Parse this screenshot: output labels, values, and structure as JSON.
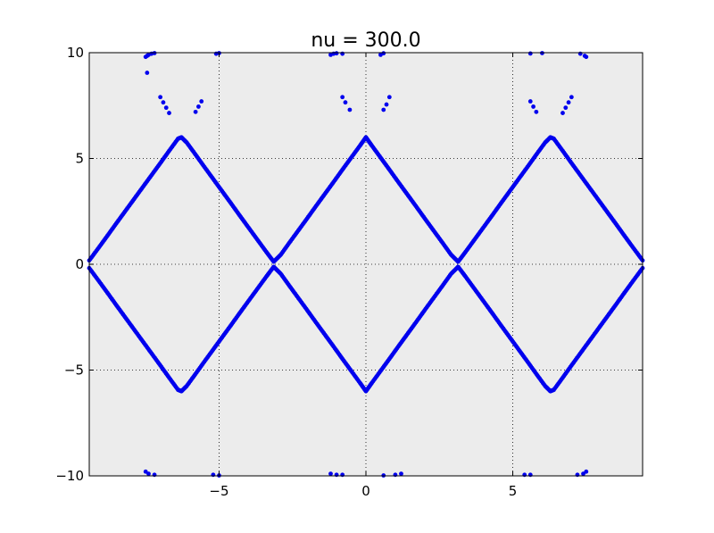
{
  "chart_data": {
    "type": "scatter",
    "title": "nu = 300.0",
    "xlabel": "",
    "ylabel": "",
    "xlim": [
      -9.42,
      9.42
    ],
    "ylim": [
      -10,
      10
    ],
    "x_ticks": [
      {
        "value": -5,
        "label": "−5"
      },
      {
        "value": 0,
        "label": "0"
      },
      {
        "value": 5,
        "label": "5"
      }
    ],
    "y_ticks": [
      {
        "value": -10,
        "label": "−10"
      },
      {
        "value": -5,
        "label": "−5"
      },
      {
        "value": 0,
        "label": "0"
      },
      {
        "value": 5,
        "label": "5"
      },
      {
        "value": 10,
        "label": "10"
      }
    ],
    "grid": true,
    "grid_style": "dotted",
    "background_color": "#ececec",
    "marker_color": "#0000ee",
    "series": [
      {
        "description_of_shape": "upper band: y = 6 - 6*|x - round(x/2pi)*2pi|/pi offset",
        "points": [
          [
            -9.42,
            0.18
          ],
          [
            -9.1,
            0.78
          ],
          [
            -8.8,
            1.35
          ],
          [
            -8.5,
            1.93
          ],
          [
            -8.2,
            2.5
          ],
          [
            -7.9,
            3.07
          ],
          [
            -7.6,
            3.64
          ],
          [
            -7.3,
            4.21
          ],
          [
            -7.0,
            4.78
          ],
          [
            -6.7,
            5.36
          ],
          [
            -6.4,
            5.93
          ],
          [
            -6.28,
            6.0
          ],
          [
            -6.1,
            5.75
          ],
          [
            -5.8,
            5.18
          ],
          [
            -5.5,
            4.6
          ],
          [
            -5.2,
            4.03
          ],
          [
            -4.9,
            3.46
          ],
          [
            -4.6,
            2.89
          ],
          [
            -4.3,
            2.31
          ],
          [
            -4.0,
            1.74
          ],
          [
            -3.7,
            1.17
          ],
          [
            -3.4,
            0.6
          ],
          [
            -3.14,
            0.12
          ],
          [
            -2.9,
            0.45
          ],
          [
            -2.6,
            1.03
          ],
          [
            -2.3,
            1.6
          ],
          [
            -2.0,
            2.17
          ],
          [
            -1.7,
            2.75
          ],
          [
            -1.4,
            3.32
          ],
          [
            -1.1,
            3.89
          ],
          [
            -0.8,
            4.47
          ],
          [
            -0.5,
            5.04
          ],
          [
            -0.2,
            5.61
          ],
          [
            0.0,
            6.0
          ],
          [
            0.2,
            5.61
          ],
          [
            0.5,
            5.04
          ],
          [
            0.8,
            4.47
          ],
          [
            1.1,
            3.89
          ],
          [
            1.4,
            3.32
          ],
          [
            1.7,
            2.75
          ],
          [
            2.0,
            2.17
          ],
          [
            2.3,
            1.6
          ],
          [
            2.6,
            1.03
          ],
          [
            2.9,
            0.45
          ],
          [
            3.14,
            0.12
          ],
          [
            3.4,
            0.6
          ],
          [
            3.7,
            1.17
          ],
          [
            4.0,
            1.74
          ],
          [
            4.3,
            2.31
          ],
          [
            4.6,
            2.89
          ],
          [
            4.9,
            3.46
          ],
          [
            5.2,
            4.03
          ],
          [
            5.5,
            4.6
          ],
          [
            5.8,
            5.18
          ],
          [
            6.1,
            5.75
          ],
          [
            6.28,
            6.0
          ],
          [
            6.4,
            5.93
          ],
          [
            6.7,
            5.36
          ],
          [
            7.0,
            4.78
          ],
          [
            7.3,
            4.21
          ],
          [
            7.6,
            3.64
          ],
          [
            7.9,
            3.07
          ],
          [
            8.2,
            2.5
          ],
          [
            8.5,
            1.93
          ],
          [
            8.8,
            1.35
          ],
          [
            9.1,
            0.78
          ],
          [
            9.42,
            0.18
          ]
        ]
      },
      {
        "description_of_shape": "lower band (mirror of upper)",
        "points": [
          [
            -9.42,
            -0.18
          ],
          [
            -9.1,
            -0.78
          ],
          [
            -8.8,
            -1.35
          ],
          [
            -8.5,
            -1.93
          ],
          [
            -8.2,
            -2.5
          ],
          [
            -7.9,
            -3.07
          ],
          [
            -7.6,
            -3.64
          ],
          [
            -7.3,
            -4.21
          ],
          [
            -7.0,
            -4.78
          ],
          [
            -6.7,
            -5.36
          ],
          [
            -6.4,
            -5.93
          ],
          [
            -6.28,
            -6.0
          ],
          [
            -6.1,
            -5.75
          ],
          [
            -5.8,
            -5.18
          ],
          [
            -5.5,
            -4.6
          ],
          [
            -5.2,
            -4.03
          ],
          [
            -4.9,
            -3.46
          ],
          [
            -4.6,
            -2.89
          ],
          [
            -4.3,
            -2.31
          ],
          [
            -4.0,
            -1.74
          ],
          [
            -3.7,
            -1.17
          ],
          [
            -3.4,
            -0.6
          ],
          [
            -3.14,
            -0.12
          ],
          [
            -2.9,
            -0.45
          ],
          [
            -2.6,
            -1.03
          ],
          [
            -2.3,
            -1.6
          ],
          [
            -2.0,
            -2.17
          ],
          [
            -1.7,
            -2.75
          ],
          [
            -1.4,
            -3.32
          ],
          [
            -1.1,
            -3.89
          ],
          [
            -0.8,
            -4.47
          ],
          [
            -0.5,
            -5.04
          ],
          [
            -0.2,
            -5.61
          ],
          [
            0.0,
            -6.0
          ],
          [
            0.2,
            -5.61
          ],
          [
            0.5,
            -5.04
          ],
          [
            0.8,
            -4.47
          ],
          [
            1.1,
            -3.89
          ],
          [
            1.4,
            -3.32
          ],
          [
            1.7,
            -2.75
          ],
          [
            2.0,
            -2.17
          ],
          [
            2.3,
            -1.6
          ],
          [
            2.6,
            -1.03
          ],
          [
            2.9,
            -0.45
          ],
          [
            3.14,
            -0.12
          ],
          [
            3.4,
            -0.6
          ],
          [
            3.7,
            -1.17
          ],
          [
            4.0,
            -1.74
          ],
          [
            4.3,
            -2.31
          ],
          [
            4.6,
            -2.89
          ],
          [
            4.9,
            -3.46
          ],
          [
            5.2,
            -4.03
          ],
          [
            5.5,
            -4.6
          ],
          [
            5.8,
            -5.18
          ],
          [
            6.1,
            -5.75
          ],
          [
            6.28,
            -6.0
          ],
          [
            6.4,
            -5.93
          ],
          [
            6.7,
            -5.36
          ],
          [
            7.0,
            -4.78
          ],
          [
            7.3,
            -4.21
          ],
          [
            7.6,
            -3.64
          ],
          [
            7.9,
            -3.07
          ],
          [
            8.2,
            -2.5
          ],
          [
            8.5,
            -1.93
          ],
          [
            8.8,
            -1.35
          ],
          [
            9.1,
            -0.78
          ],
          [
            9.42,
            -0.18
          ]
        ]
      },
      {
        "description_of_shape": "scattered outlier points near y = +/-10 and short streaks near y ~ 7-8",
        "points": [
          [
            -7.5,
            9.8
          ],
          [
            -7.45,
            9.85
          ],
          [
            -7.4,
            9.9
          ],
          [
            -7.3,
            9.95
          ],
          [
            -7.2,
            9.98
          ],
          [
            -5.1,
            9.95
          ],
          [
            -5.0,
            9.98
          ],
          [
            -7.45,
            9.05
          ],
          [
            -1.2,
            9.9
          ],
          [
            -1.1,
            9.95
          ],
          [
            -1.0,
            9.97
          ],
          [
            -0.8,
            9.95
          ],
          [
            0.5,
            9.9
          ],
          [
            0.6,
            9.97
          ],
          [
            7.5,
            9.8
          ],
          [
            7.45,
            9.85
          ],
          [
            7.3,
            9.95
          ],
          [
            6.0,
            9.98
          ],
          [
            5.6,
            9.96
          ],
          [
            -7.0,
            7.9
          ],
          [
            -6.9,
            7.65
          ],
          [
            -6.8,
            7.4
          ],
          [
            -6.7,
            7.15
          ],
          [
            -5.6,
            7.7
          ],
          [
            -5.7,
            7.45
          ],
          [
            -5.8,
            7.2
          ],
          [
            -0.8,
            7.9
          ],
          [
            -0.7,
            7.65
          ],
          [
            -0.55,
            7.3
          ],
          [
            0.6,
            7.3
          ],
          [
            0.7,
            7.55
          ],
          [
            0.8,
            7.9
          ],
          [
            5.6,
            7.7
          ],
          [
            5.7,
            7.45
          ],
          [
            5.8,
            7.2
          ],
          [
            6.7,
            7.15
          ],
          [
            6.8,
            7.4
          ],
          [
            6.9,
            7.65
          ],
          [
            7.0,
            7.9
          ],
          [
            -7.5,
            -9.8
          ],
          [
            -7.4,
            -9.9
          ],
          [
            -7.2,
            -9.95
          ],
          [
            -5.2,
            -9.95
          ],
          [
            -5.0,
            -9.98
          ],
          [
            -1.2,
            -9.9
          ],
          [
            -1.0,
            -9.95
          ],
          [
            -0.8,
            -9.95
          ],
          [
            0.6,
            -9.98
          ],
          [
            1.0,
            -9.95
          ],
          [
            1.2,
            -9.9
          ],
          [
            5.4,
            -9.95
          ],
          [
            5.6,
            -9.95
          ],
          [
            7.2,
            -9.95
          ],
          [
            7.4,
            -9.9
          ],
          [
            7.5,
            -9.8
          ]
        ]
      }
    ]
  }
}
